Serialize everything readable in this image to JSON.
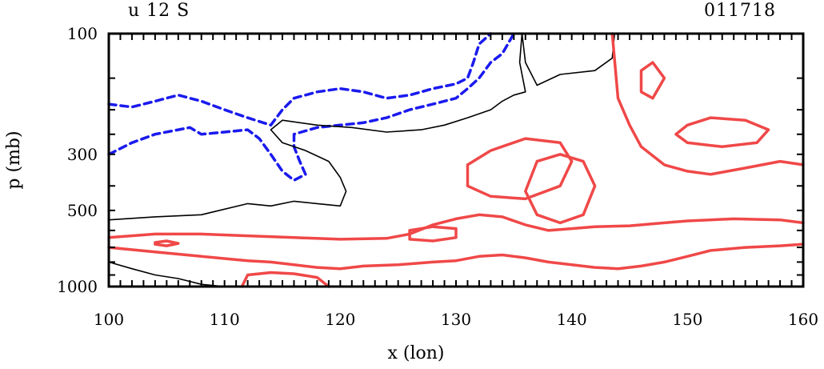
{
  "chart_data": {
    "type": "contour",
    "title_left": "u 12 S",
    "title_right": "011718",
    "xlabel": "x (lon)",
    "ylabel": "p (mb)",
    "xlim": [
      100,
      160
    ],
    "ylim": [
      1000,
      100
    ],
    "y_scale": "log",
    "grid": false,
    "x_ticks": [
      100,
      110,
      120,
      130,
      140,
      150,
      160
    ],
    "y_ticks": [
      100,
      300,
      500,
      1000
    ],
    "colors": {
      "positive": "#f04848",
      "negative": "#1a1aee",
      "zero": "#000000"
    },
    "contours": [
      {
        "name": "neg-upper",
        "kind": "negative",
        "points": [
          [
            100,
            190
          ],
          [
            102,
            195
          ],
          [
            104,
            185
          ],
          [
            106,
            175
          ],
          [
            108,
            185
          ],
          [
            110,
            200
          ],
          [
            112,
            215
          ],
          [
            114,
            230
          ],
          [
            115,
            200
          ],
          [
            116,
            180
          ],
          [
            118,
            170
          ],
          [
            120,
            165
          ],
          [
            122,
            170
          ],
          [
            124,
            180
          ],
          [
            126,
            175
          ],
          [
            128,
            165
          ],
          [
            130,
            158
          ],
          [
            131,
            150
          ],
          [
            131.5,
            130
          ],
          [
            132,
            110
          ],
          [
            133,
            100
          ]
        ]
      },
      {
        "name": "neg-lower",
        "kind": "negative",
        "points": [
          [
            100,
            300
          ],
          [
            102,
            270
          ],
          [
            104,
            250
          ],
          [
            106,
            240
          ],
          [
            107,
            235
          ],
          [
            108,
            250
          ],
          [
            110,
            245
          ],
          [
            112,
            240
          ],
          [
            113,
            260
          ],
          [
            114,
            300
          ],
          [
            115,
            350
          ],
          [
            116,
            380
          ],
          [
            117,
            360
          ],
          [
            116.5,
            320
          ],
          [
            116,
            280
          ],
          [
            116,
            250
          ],
          [
            118,
            235
          ],
          [
            120,
            230
          ],
          [
            122,
            225
          ],
          [
            124,
            215
          ],
          [
            126,
            200
          ],
          [
            128,
            190
          ],
          [
            130,
            180
          ],
          [
            131,
            165
          ],
          [
            132,
            150
          ],
          [
            133,
            130
          ],
          [
            134,
            120
          ],
          [
            135,
            100
          ]
        ]
      },
      {
        "name": "zero-upper",
        "kind": "zero",
        "points": [
          [
            100,
            545
          ],
          [
            104,
            530
          ],
          [
            108,
            520
          ],
          [
            112,
            470
          ],
          [
            114,
            480
          ],
          [
            116,
            460
          ],
          [
            118,
            470
          ],
          [
            120,
            480
          ],
          [
            120.5,
            420
          ],
          [
            120,
            370
          ],
          [
            119,
            320
          ],
          [
            117,
            290
          ],
          [
            115,
            270
          ],
          [
            114,
            240
          ],
          [
            115,
            220
          ],
          [
            118,
            230
          ],
          [
            121,
            235
          ],
          [
            124,
            245
          ],
          [
            127,
            240
          ],
          [
            129,
            230
          ],
          [
            131,
            215
          ],
          [
            133,
            200
          ],
          [
            134,
            185
          ],
          [
            135,
            175
          ],
          [
            136,
            170
          ],
          [
            135.5,
            130
          ],
          [
            135.7,
            100
          ],
          [
            136,
            130
          ],
          [
            137,
            160
          ],
          [
            139,
            145
          ],
          [
            142,
            140
          ],
          [
            143.5,
            125
          ],
          [
            143.7,
            100
          ]
        ]
      },
      {
        "name": "zero-lower",
        "kind": "zero",
        "points": [
          [
            100,
            800
          ],
          [
            102,
            850
          ],
          [
            104,
            900
          ],
          [
            106,
            930
          ],
          [
            108,
            980
          ],
          [
            110,
            1000
          ]
        ]
      },
      {
        "name": "pos-main",
        "kind": "positive",
        "points": [
          [
            100,
            640
          ],
          [
            104,
            620
          ],
          [
            108,
            620
          ],
          [
            112,
            630
          ],
          [
            116,
            640
          ],
          [
            120,
            650
          ],
          [
            124,
            645
          ],
          [
            126,
            620
          ],
          [
            128,
            570
          ],
          [
            130,
            540
          ],
          [
            132,
            520
          ],
          [
            134,
            530
          ],
          [
            136,
            570
          ],
          [
            138,
            600
          ],
          [
            140,
            590
          ],
          [
            142,
            580
          ],
          [
            145,
            575
          ],
          [
            148,
            560
          ],
          [
            150,
            550
          ],
          [
            154,
            540
          ],
          [
            158,
            545
          ],
          [
            160,
            560
          ]
        ]
      },
      {
        "name": "pos-lower",
        "kind": "positive",
        "points": [
          [
            100,
            700
          ],
          [
            104,
            730
          ],
          [
            108,
            760
          ],
          [
            112,
            790
          ],
          [
            114,
            800
          ],
          [
            116,
            820
          ],
          [
            118,
            840
          ],
          [
            120,
            850
          ],
          [
            122,
            830
          ],
          [
            125,
            820
          ],
          [
            128,
            800
          ],
          [
            130,
            790
          ],
          [
            132,
            760
          ],
          [
            134,
            750
          ],
          [
            136,
            770
          ],
          [
            138,
            800
          ],
          [
            140,
            820
          ],
          [
            142,
            840
          ],
          [
            144,
            850
          ],
          [
            146,
            830
          ],
          [
            148,
            800
          ],
          [
            150,
            760
          ],
          [
            152,
            720
          ],
          [
            155,
            700
          ],
          [
            158,
            690
          ],
          [
            160,
            680
          ]
        ]
      },
      {
        "name": "pos-bottom",
        "kind": "positive",
        "points": [
          [
            111.5,
            1000
          ],
          [
            112,
            900
          ],
          [
            114,
            880
          ],
          [
            116,
            890
          ],
          [
            118,
            920
          ],
          [
            119,
            1000
          ]
        ]
      },
      {
        "name": "pos-right-upper",
        "kind": "positive",
        "points": [
          [
            143.5,
            100
          ],
          [
            144,
            180
          ],
          [
            145,
            230
          ],
          [
            146,
            280
          ],
          [
            148,
            330
          ],
          [
            150,
            350
          ],
          [
            152,
            360
          ],
          [
            155,
            340
          ],
          [
            158,
            320
          ],
          [
            160,
            330
          ]
        ]
      },
      {
        "name": "pos-ring-1",
        "kind": "positive",
        "points": [
          [
            150,
            230
          ],
          [
            152,
            215
          ],
          [
            155,
            220
          ],
          [
            157,
            240
          ],
          [
            156,
            270
          ],
          [
            153,
            280
          ],
          [
            150,
            270
          ],
          [
            149,
            250
          ],
          [
            150,
            230
          ]
        ]
      },
      {
        "name": "pos-ring-2",
        "kind": "positive",
        "points": [
          [
            131,
            330
          ],
          [
            133,
            290
          ],
          [
            136,
            260
          ],
          [
            139,
            270
          ],
          [
            140,
            320
          ],
          [
            139,
            400
          ],
          [
            136,
            450
          ],
          [
            133,
            440
          ],
          [
            131,
            400
          ],
          [
            131,
            330
          ]
        ]
      },
      {
        "name": "pos-ring-3",
        "kind": "positive",
        "points": [
          [
            126,
            600
          ],
          [
            128,
            580
          ],
          [
            130,
            590
          ],
          [
            130,
            640
          ],
          [
            128,
            660
          ],
          [
            126,
            650
          ],
          [
            126,
            600
          ]
        ]
      },
      {
        "name": "pos-ring-4",
        "kind": "positive",
        "points": [
          [
            137,
            320
          ],
          [
            139,
            300
          ],
          [
            141,
            320
          ],
          [
            142,
            400
          ],
          [
            141,
            520
          ],
          [
            139,
            560
          ],
          [
            137,
            520
          ],
          [
            136,
            420
          ],
          [
            137,
            320
          ]
        ]
      },
      {
        "name": "pos-ring-5",
        "kind": "positive",
        "points": [
          [
            146,
            140
          ],
          [
            147,
            130
          ],
          [
            148,
            150
          ],
          [
            147,
            180
          ],
          [
            146,
            170
          ],
          [
            146,
            140
          ]
        ]
      },
      {
        "name": "pos-ring-6",
        "kind": "positive",
        "points": [
          [
            104,
            670
          ],
          [
            105,
            660
          ],
          [
            106,
            675
          ],
          [
            105,
            690
          ],
          [
            104,
            680
          ],
          [
            104,
            670
          ]
        ]
      }
    ]
  }
}
